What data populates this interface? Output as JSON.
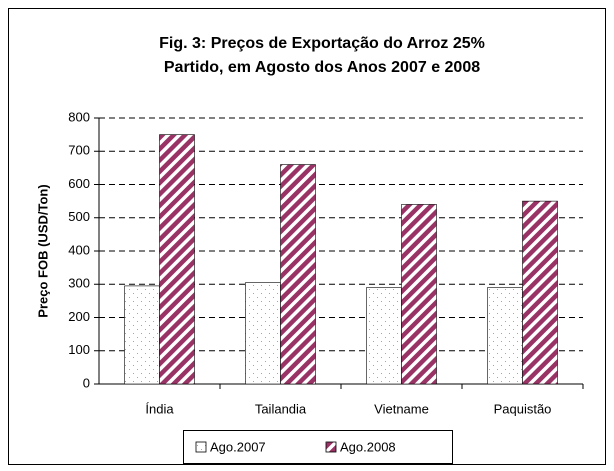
{
  "chart_data": {
    "type": "bar",
    "title": "Fig. 3: Preços de Exportação do Arroz 25%",
    "subtitle": "Partido, em Agosto dos Anos 2007 e 2008",
    "ylabel": "Preço FOB (USD/Ton)",
    "categories": [
      "Índia",
      "Tailandia",
      "Vietname",
      "Paquistão"
    ],
    "series": [
      {
        "name": "Ago.2007",
        "color": "#9999ff",
        "values": [
          295,
          305,
          290,
          290
        ]
      },
      {
        "name": "Ago.2008",
        "color": "#993366",
        "values": [
          750,
          660,
          540,
          550
        ]
      }
    ],
    "ylim": [
      0,
      800
    ],
    "yticks": [
      0,
      100,
      200,
      300,
      400,
      500,
      600,
      700,
      800
    ],
    "grid": true,
    "legend": "bottom"
  }
}
